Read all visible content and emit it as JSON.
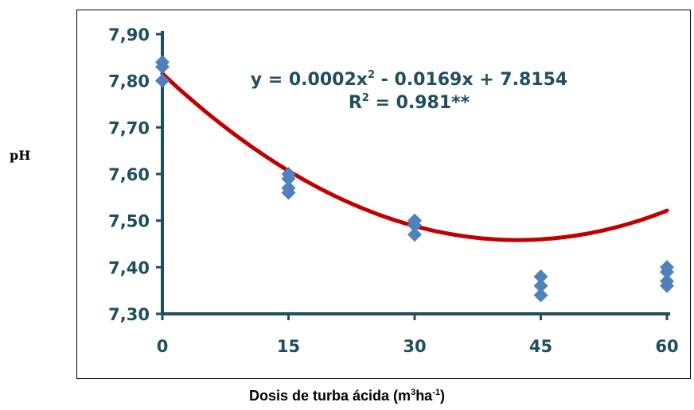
{
  "chart_data": {
    "type": "scatter",
    "ylabel": "pH",
    "xlabel_parts": {
      "pre": "Dosis de turba ácida (m",
      "sup1": "3",
      "mid": "ha",
      "sup2": "-1",
      "post": ")"
    },
    "xlim": [
      0,
      60
    ],
    "ylim": [
      7.3,
      7.9
    ],
    "x_ticks": [
      "0",
      "15",
      "30",
      "45",
      "60"
    ],
    "x_tick_values": [
      0,
      15,
      30,
      45,
      60
    ],
    "y_ticks": [
      "7,30",
      "7,40",
      "7,50",
      "7,60",
      "7,70",
      "7,80",
      "7,90"
    ],
    "y_tick_values": [
      7.3,
      7.4,
      7.5,
      7.6,
      7.7,
      7.8,
      7.9
    ],
    "points": [
      {
        "x": 0,
        "y": 7.84
      },
      {
        "x": 0,
        "y": 7.83
      },
      {
        "x": 0,
        "y": 7.8
      },
      {
        "x": 15,
        "y": 7.6
      },
      {
        "x": 15,
        "y": 7.59
      },
      {
        "x": 15,
        "y": 7.57
      },
      {
        "x": 15,
        "y": 7.56
      },
      {
        "x": 30,
        "y": 7.5
      },
      {
        "x": 30,
        "y": 7.49
      },
      {
        "x": 30,
        "y": 7.47
      },
      {
        "x": 45,
        "y": 7.38
      },
      {
        "x": 45,
        "y": 7.36
      },
      {
        "x": 45,
        "y": 7.34
      },
      {
        "x": 60,
        "y": 7.4
      },
      {
        "x": 60,
        "y": 7.39
      },
      {
        "x": 60,
        "y": 7.37
      },
      {
        "x": 60,
        "y": 7.36
      }
    ],
    "fit": {
      "a": 0.0002,
      "b": -0.0169,
      "c": 7.8154
    },
    "equation": {
      "pre": "y = 0.0002x",
      "sup": "2",
      "post": " - 0.0169x + 7.8154",
      "r2_pre": "R",
      "r2_sup": "2",
      "r2_post": " = 0.981**"
    },
    "grid": false,
    "colors": {
      "points": "#4f81bd",
      "fit": "#c00000",
      "axis": "#1f4e5f"
    }
  }
}
